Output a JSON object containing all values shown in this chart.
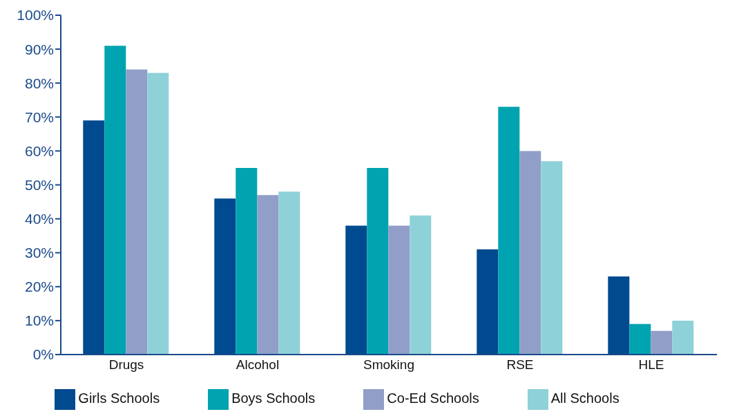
{
  "chart_data": {
    "type": "bar",
    "categories": [
      "Drugs",
      "Alcohol",
      "Smoking",
      "RSE",
      "HLE"
    ],
    "series": [
      {
        "name": "Girls Schools",
        "color": "#004a8f",
        "values": [
          69,
          46,
          38,
          31,
          23
        ]
      },
      {
        "name": "Boys Schools",
        "color": "#00a3b0",
        "values": [
          91,
          55,
          55,
          73,
          9
        ]
      },
      {
        "name": "Co-Ed Schools",
        "color": "#919fc8",
        "values": [
          84,
          47,
          38,
          60,
          7
        ]
      },
      {
        "name": "All Schools",
        "color": "#8fd1d8",
        "values": [
          83,
          48,
          41,
          57,
          10
        ]
      }
    ],
    "ylim": [
      0,
      100
    ],
    "yticks": [
      {
        "value": 0,
        "label": "0%"
      },
      {
        "value": 10,
        "label": "10%"
      },
      {
        "value": 20,
        "label": "20%"
      },
      {
        "value": 30,
        "label": "30%"
      },
      {
        "value": 40,
        "label": "40%"
      },
      {
        "value": 50,
        "label": "50%"
      },
      {
        "value": 60,
        "label": "60%"
      },
      {
        "value": 70,
        "label": "70%"
      },
      {
        "value": 80,
        "label": "80%"
      },
      {
        "value": 90,
        "label": "90%"
      },
      {
        "value": 100,
        "label": "100%"
      }
    ],
    "grid": false,
    "legend": "bottom"
  }
}
